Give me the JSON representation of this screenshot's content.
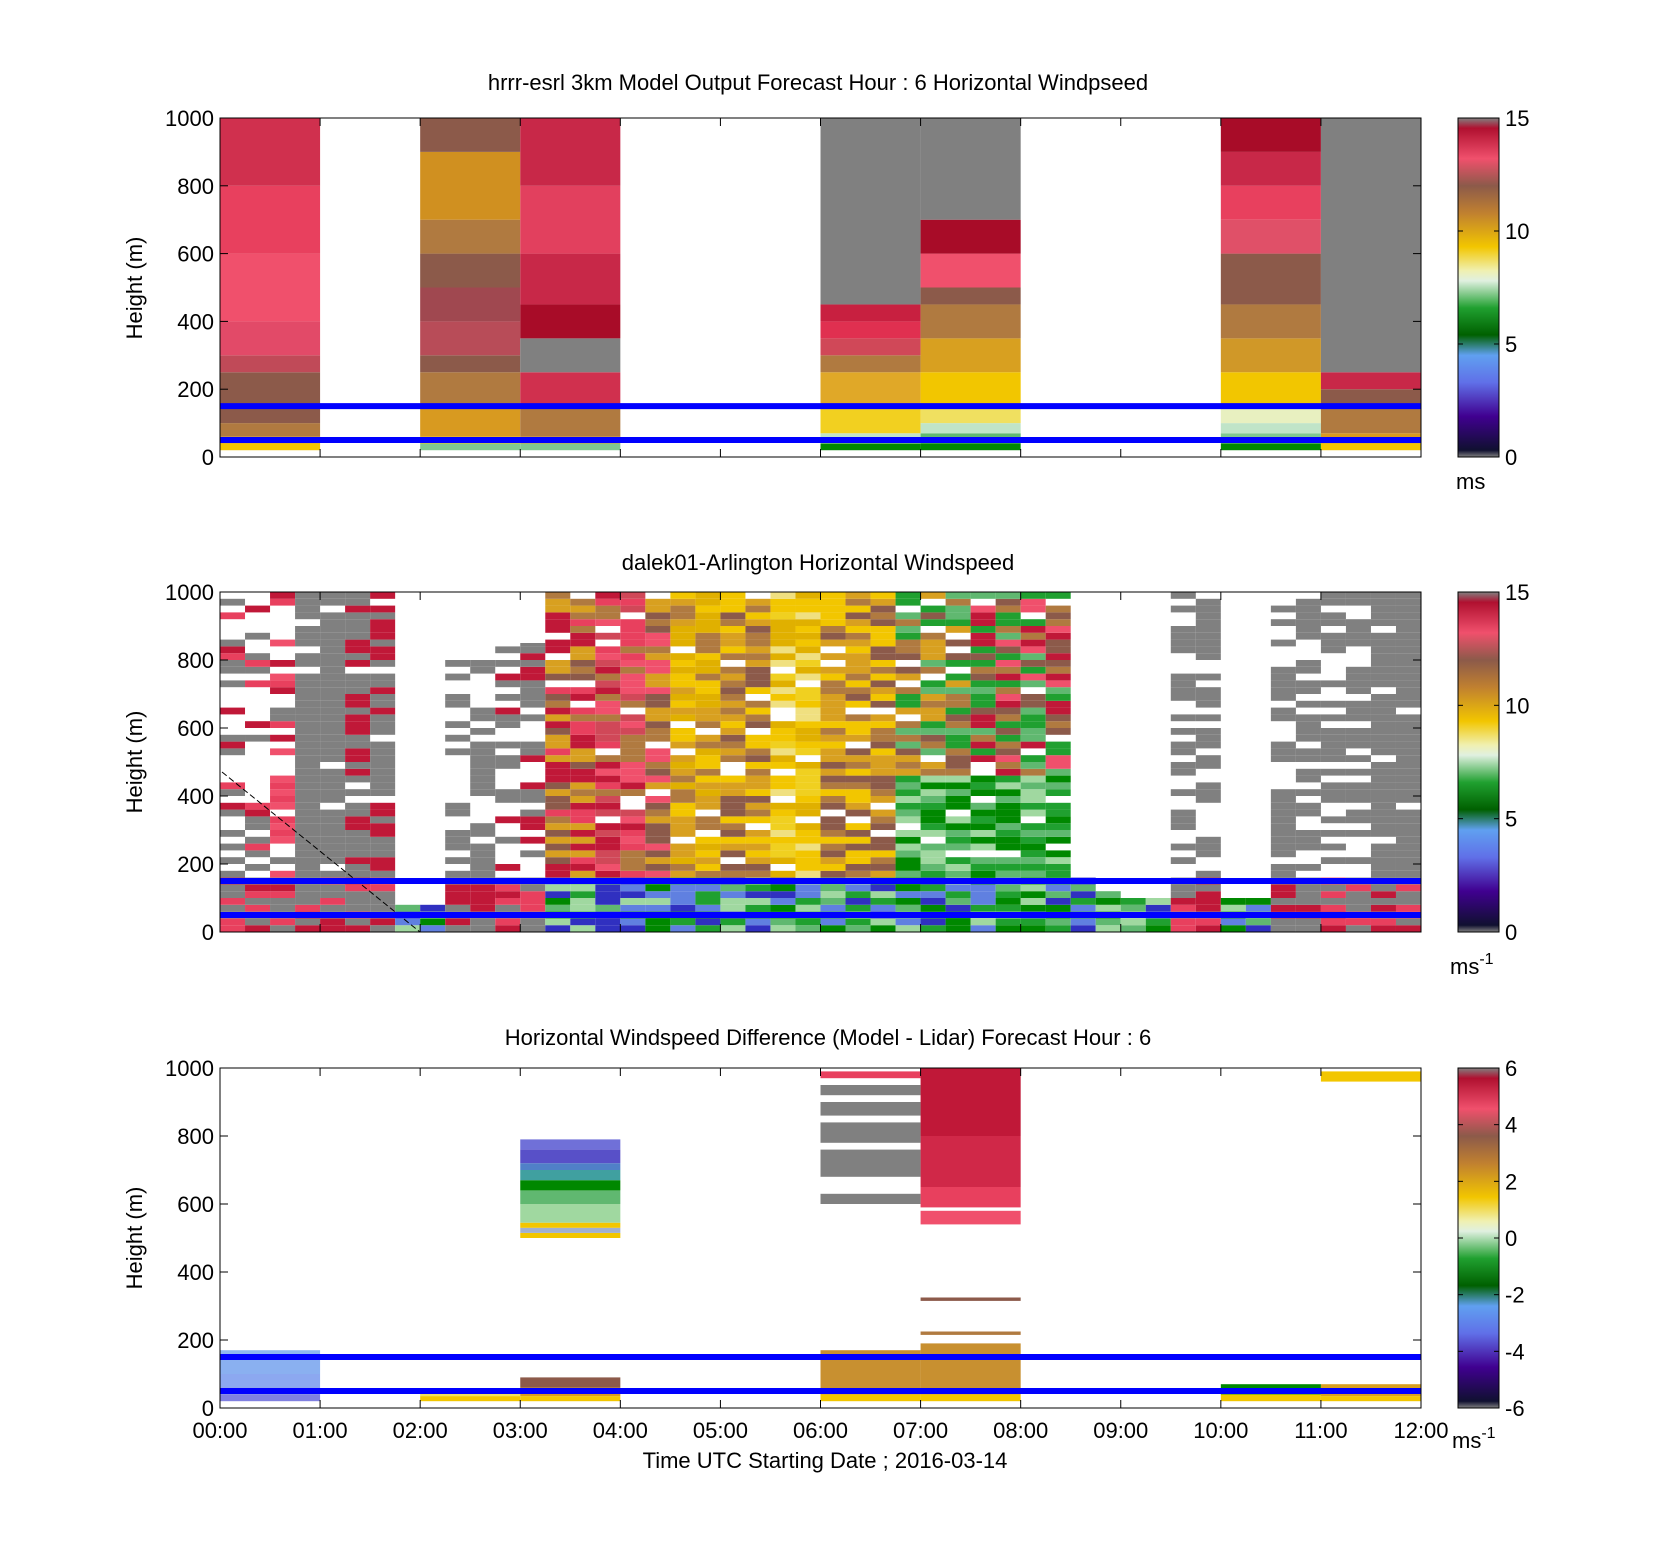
{
  "chart_data": [
    {
      "type": "heatmap",
      "title": "hrrr-esrl 3km Model Output   Forecast Hour : 6 Horizontal Windpseed",
      "ylabel": "Height (m)",
      "ylim": [
        0,
        1000
      ],
      "yticks": [
        "0",
        "200",
        "400",
        "600",
        "800",
        "1000"
      ],
      "xlim": [
        0,
        12
      ],
      "colorbar": {
        "range": [
          0,
          15
        ],
        "ticks": [
          "0",
          "5",
          "10",
          "15"
        ],
        "unit": "ms",
        "unit_sup": ""
      },
      "reference_lines_m": [
        150,
        50
      ],
      "columns": [
        {
          "hour": 0,
          "cells": [
            [
              0,
              20,
              "#ffffff"
            ],
            [
              20,
              40,
              "#f2c600"
            ],
            [
              40,
              60,
              "#d9a028"
            ],
            [
              60,
              100,
              "#b07a40"
            ],
            [
              100,
              150,
              "#8c5a4a"
            ],
            [
              150,
              250,
              "#8c5a4a"
            ],
            [
              250,
              300,
              "#c04a58"
            ],
            [
              300,
              400,
              "#e24a68"
            ],
            [
              400,
              600,
              "#f0506c"
            ],
            [
              600,
              800,
              "#e8405e"
            ],
            [
              800,
              1000,
              "#d0304e"
            ]
          ]
        },
        {
          "hour": 2,
          "cells": [
            [
              0,
              20,
              "#ffffff"
            ],
            [
              20,
              40,
              "#80c890"
            ],
            [
              40,
              60,
              "#f2c600"
            ],
            [
              60,
              150,
              "#d89a20"
            ],
            [
              150,
              250,
              "#b07a40"
            ],
            [
              250,
              300,
              "#8c5a4a"
            ],
            [
              300,
              400,
              "#b84c58"
            ],
            [
              400,
              500,
              "#a04850"
            ],
            [
              500,
              600,
              "#8c5a4a"
            ],
            [
              600,
              700,
              "#b07a40"
            ],
            [
              700,
              900,
              "#d09020"
            ],
            [
              900,
              1000,
              "#8c5a4a"
            ]
          ]
        },
        {
          "hour": 3,
          "cells": [
            [
              0,
              20,
              "#ffffff"
            ],
            [
              20,
              40,
              "#80c890"
            ],
            [
              40,
              60,
              "#d89a20"
            ],
            [
              60,
              150,
              "#b07a40"
            ],
            [
              150,
              250,
              "#d0304e"
            ],
            [
              250,
              350,
              "#808080"
            ],
            [
              350,
              450,
              "#a80c28"
            ],
            [
              450,
              600,
              "#c82848"
            ],
            [
              600,
              800,
              "#e2405e"
            ],
            [
              800,
              1000,
              "#c82848"
            ]
          ]
        },
        {
          "hour": 6,
          "cells": [
            [
              0,
              20,
              "#ffffff"
            ],
            [
              20,
              40,
              "#008800"
            ],
            [
              40,
              70,
              "#c0e4c8"
            ],
            [
              70,
              150,
              "#f2d020"
            ],
            [
              150,
              250,
              "#e0a828"
            ],
            [
              250,
              300,
              "#b07a40"
            ],
            [
              300,
              350,
              "#d04858"
            ],
            [
              350,
              400,
              "#e03050"
            ],
            [
              400,
              450,
              "#c82040"
            ],
            [
              450,
              1000,
              "#808080"
            ]
          ]
        },
        {
          "hour": 7,
          "cells": [
            [
              0,
              20,
              "#ffffff"
            ],
            [
              20,
              40,
              "#008800"
            ],
            [
              40,
              70,
              "#60b870"
            ],
            [
              70,
              100,
              "#c0e4c8"
            ],
            [
              100,
              150,
              "#f0e060"
            ],
            [
              150,
              250,
              "#f2c600"
            ],
            [
              250,
              350,
              "#d8a020"
            ],
            [
              350,
              450,
              "#b07a40"
            ],
            [
              450,
              500,
              "#8c5a4a"
            ],
            [
              500,
              600,
              "#f0506c"
            ],
            [
              600,
              700,
              "#a80c28"
            ],
            [
              700,
              1000,
              "#808080"
            ]
          ]
        },
        {
          "hour": 10,
          "cells": [
            [
              0,
              20,
              "#ffffff"
            ],
            [
              20,
              40,
              "#008800"
            ],
            [
              40,
              70,
              "#80c890"
            ],
            [
              70,
              100,
              "#c0e4c8"
            ],
            [
              100,
              150,
              "#e8f0c0"
            ],
            [
              150,
              250,
              "#f2c600"
            ],
            [
              250,
              350,
              "#d09828"
            ],
            [
              350,
              450,
              "#b07a40"
            ],
            [
              450,
              600,
              "#8c5a4a"
            ],
            [
              600,
              700,
              "#e05068"
            ],
            [
              700,
              800,
              "#e8405e"
            ],
            [
              800,
              900,
              "#c82848"
            ],
            [
              900,
              1000,
              "#a80c28"
            ]
          ]
        },
        {
          "hour": 11,
          "cells": [
            [
              0,
              20,
              "#ffffff"
            ],
            [
              20,
              40,
              "#f2c600"
            ],
            [
              40,
              70,
              "#d89a20"
            ],
            [
              70,
              150,
              "#b07a40"
            ],
            [
              150,
              200,
              "#8c5a4a"
            ],
            [
              200,
              250,
              "#c82848"
            ],
            [
              250,
              1000,
              "#808080"
            ]
          ]
        }
      ]
    },
    {
      "type": "heatmap",
      "title": "dalek01-Arlington  Horizontal Windspeed",
      "ylabel": "Height (m)",
      "ylim": [
        0,
        1000
      ],
      "yticks": [
        "0",
        "200",
        "400",
        "600",
        "800",
        "1000"
      ],
      "xlim": [
        0,
        12
      ],
      "colorbar": {
        "range": [
          0,
          15
        ],
        "ticks": [
          "0",
          "5",
          "10",
          "15"
        ],
        "unit": "ms",
        "unit_sup": "-1"
      },
      "reference_lines_m": [
        150,
        50
      ],
      "lidar_profiles": [
        {
          "t": 0.0,
          "top": 1000,
          "pattern": "gray_red_sparse"
        },
        {
          "t": 0.25,
          "top": 1000,
          "pattern": "gray_red_sparse"
        },
        {
          "t": 0.5,
          "top": 1000,
          "pattern": "red_sparse"
        },
        {
          "t": 0.75,
          "top": 1000,
          "pattern": "gray_dense"
        },
        {
          "t": 1.0,
          "top": 1000,
          "pattern": "gray_dense"
        },
        {
          "t": 1.25,
          "top": 1000,
          "pattern": "gray_dense_red"
        },
        {
          "t": 1.5,
          "top": 1000,
          "pattern": "gray_dense_red"
        },
        {
          "t": 1.75,
          "top": 80,
          "pattern": "low_green"
        },
        {
          "t": 2.0,
          "top": 80,
          "pattern": "low_green"
        },
        {
          "t": 2.25,
          "top": 800,
          "pattern": "gray_sparse"
        },
        {
          "t": 2.5,
          "top": 800,
          "pattern": "gray_sparse"
        },
        {
          "t": 2.75,
          "top": 850,
          "pattern": "gray_mid"
        },
        {
          "t": 3.0,
          "top": 850,
          "pattern": "gray_mid"
        },
        {
          "t": 3.25,
          "top": 1000,
          "pattern": "mixed_red_orange"
        },
        {
          "t": 3.5,
          "top": 1000,
          "pattern": "mixed_red_orange"
        },
        {
          "t": 3.75,
          "top": 1000,
          "pattern": "pink_red"
        },
        {
          "t": 4.0,
          "top": 1000,
          "pattern": "pink_red"
        },
        {
          "t": 4.25,
          "top": 1000,
          "pattern": "pink_orange"
        },
        {
          "t": 4.5,
          "top": 1000,
          "pattern": "orange_yellow"
        },
        {
          "t": 4.75,
          "top": 1000,
          "pattern": "orange_yellow"
        },
        {
          "t": 5.0,
          "top": 1000,
          "pattern": "yellow_brown"
        },
        {
          "t": 5.25,
          "top": 1000,
          "pattern": "yellow_brown"
        },
        {
          "t": 5.5,
          "top": 1000,
          "pattern": "yellow"
        },
        {
          "t": 5.75,
          "top": 1000,
          "pattern": "yellow"
        },
        {
          "t": 6.0,
          "top": 1000,
          "pattern": "brown_yellow"
        },
        {
          "t": 6.25,
          "top": 1000,
          "pattern": "brown_yellow"
        },
        {
          "t": 6.5,
          "top": 1000,
          "pattern": "yellow_brown"
        },
        {
          "t": 6.75,
          "top": 1000,
          "pattern": "brown_green"
        },
        {
          "t": 7.0,
          "top": 1000,
          "pattern": "brown_green"
        },
        {
          "t": 7.25,
          "top": 1000,
          "pattern": "brown_green"
        },
        {
          "t": 7.5,
          "top": 1000,
          "pattern": "pink_green"
        },
        {
          "t": 7.75,
          "top": 1000,
          "pattern": "pink_green"
        },
        {
          "t": 8.0,
          "top": 1000,
          "pattern": "pink_green"
        },
        {
          "t": 8.25,
          "top": 1000,
          "pattern": "pink_green"
        },
        {
          "t": 8.5,
          "top": 200,
          "pattern": "low_green"
        },
        {
          "t": 8.75,
          "top": 120,
          "pattern": "low_green"
        },
        {
          "t": 9.0,
          "top": 100,
          "pattern": "low_green"
        },
        {
          "t": 9.25,
          "top": 100,
          "pattern": "low_green"
        },
        {
          "t": 9.5,
          "top": 1000,
          "pattern": "gray_top"
        },
        {
          "t": 9.75,
          "top": 1000,
          "pattern": "gray_top"
        },
        {
          "t": 10.0,
          "top": 100,
          "pattern": "low_yellow"
        },
        {
          "t": 10.25,
          "top": 100,
          "pattern": "low_yellow"
        },
        {
          "t": 10.5,
          "top": 1000,
          "pattern": "gray_sparse"
        },
        {
          "t": 10.75,
          "top": 1000,
          "pattern": "gray_sparse"
        },
        {
          "t": 11.0,
          "top": 1000,
          "pattern": "gray_sparse"
        },
        {
          "t": 11.25,
          "top": 1000,
          "pattern": "gray_sparse"
        },
        {
          "t": 11.5,
          "top": 1000,
          "pattern": "gray_dense"
        },
        {
          "t": 11.75,
          "top": 1000,
          "pattern": "gray_dense"
        }
      ]
    },
    {
      "type": "heatmap",
      "title": "Horizontal Windspeed Difference (Model - Lidar) Forecast Hour : 6",
      "ylabel": "Height (m)",
      "xlabel": "Time UTC  Starting Date ; 2016-03-14",
      "ylim": [
        0,
        1000
      ],
      "yticks": [
        "0",
        "200",
        "400",
        "600",
        "800",
        "1000"
      ],
      "xlim": [
        0,
        12
      ],
      "xticks": [
        "00:00",
        "01:00",
        "02:00",
        "03:00",
        "04:00",
        "05:00",
        "06:00",
        "07:00",
        "08:00",
        "09:00",
        "10:00",
        "11:00",
        "12:00"
      ],
      "colorbar": {
        "range": [
          -6,
          6
        ],
        "ticks": [
          "-6",
          "-4",
          "-2",
          "0",
          "2",
          "4",
          "6"
        ],
        "unit": "ms",
        "unit_sup": "-1"
      },
      "reference_lines_m": [
        150,
        50
      ],
      "columns": [
        {
          "hour": 0,
          "cells": [
            [
              20,
              40,
              "#8080e0"
            ],
            [
              40,
              60,
              "#7a8ae8"
            ],
            [
              60,
              100,
              "#8ca8f0"
            ],
            [
              100,
              150,
              "#8ab0f0"
            ],
            [
              150,
              170,
              "#90b8f0"
            ]
          ]
        },
        {
          "hour": 2,
          "cells": [
            [
              20,
              35,
              "#f2c600"
            ],
            [
              35,
              45,
              "#f0e060"
            ]
          ]
        },
        {
          "hour": 3,
          "cells": [
            [
              20,
              35,
              "#f2c600"
            ],
            [
              35,
              60,
              "#d89a20"
            ],
            [
              60,
              90,
              "#8c5a4a"
            ],
            [
              500,
              515,
              "#f2c600"
            ],
            [
              515,
              530,
              "#a0b0d0"
            ],
            [
              530,
              545,
              "#f2c600"
            ],
            [
              545,
              600,
              "#a0d8a0"
            ],
            [
              600,
              640,
              "#60b870"
            ],
            [
              640,
              670,
              "#008800"
            ],
            [
              670,
              700,
              "#40a0a0"
            ],
            [
              700,
              720,
              "#5080c8"
            ],
            [
              720,
              760,
              "#5850c8"
            ],
            [
              760,
              790,
              "#7070d8"
            ]
          ]
        },
        {
          "hour": 6,
          "cells": [
            [
              20,
              40,
              "#f2c600"
            ],
            [
              40,
              170,
              "#c89030"
            ],
            [
              600,
              630,
              "#808080"
            ],
            [
              680,
              760,
              "#808080"
            ],
            [
              780,
              840,
              "#808080"
            ],
            [
              860,
              900,
              "#808080"
            ],
            [
              920,
              950,
              "#808080"
            ],
            [
              970,
              990,
              "#e8405e"
            ]
          ]
        },
        {
          "hour": 7,
          "cells": [
            [
              20,
              40,
              "#f2c600"
            ],
            [
              40,
              190,
              "#c89030"
            ],
            [
              215,
              225,
              "#b07a40"
            ],
            [
              315,
              325,
              "#8c5a4a"
            ],
            [
              540,
              580,
              "#f0506c"
            ],
            [
              590,
              650,
              "#e8405e"
            ],
            [
              650,
              800,
              "#d02848"
            ],
            [
              800,
              1000,
              "#c01838"
            ]
          ]
        },
        {
          "hour": 10,
          "cells": [
            [
              20,
              40,
              "#f2c600"
            ],
            [
              40,
              70,
              "#008800"
            ]
          ]
        },
        {
          "hour": 11,
          "cells": [
            [
              20,
              35,
              "#f2c600"
            ],
            [
              35,
              70,
              "#d8a020"
            ],
            [
              960,
              990,
              "#f2c600"
            ]
          ]
        }
      ]
    }
  ]
}
